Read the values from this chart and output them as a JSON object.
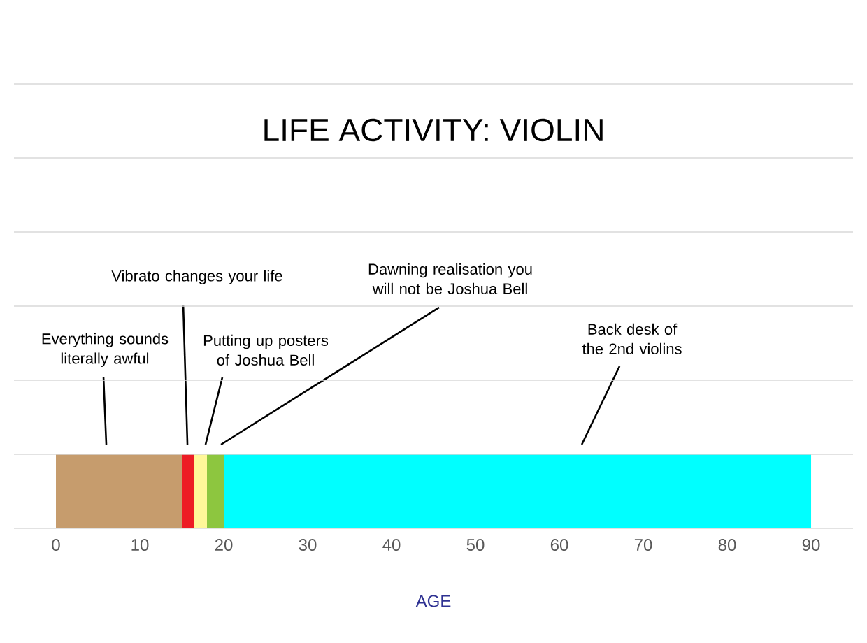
{
  "chart_data": {
    "type": "bar",
    "orientation": "horizontal",
    "stacked": true,
    "title": "LIFE ACTIVITY: VIOLIN",
    "xlabel": "AGE",
    "categories": [
      null
    ],
    "series": [
      {
        "color": "#c69c6d",
        "values": [
          15
        ]
      },
      {
        "color": "#ed1c24",
        "values": [
          1.5
        ]
      },
      {
        "color": "#fff799",
        "values": [
          1.5
        ]
      },
      {
        "color": "#8dc63f",
        "values": [
          2
        ]
      },
      {
        "color": "#00ffff",
        "values": [
          70
        ]
      }
    ],
    "xlim": [
      -5,
      95
    ],
    "xticks": [
      0,
      10,
      20,
      30,
      40,
      50,
      60,
      70,
      80,
      90
    ],
    "annotations": [
      "Everything sounds literally awful",
      "Vibrato changes your life",
      "Putting up posters of Joshua Bell",
      "Dawning realisation you will not be Joshua Bell",
      "Back desk of the 2nd violins"
    ]
  }
}
